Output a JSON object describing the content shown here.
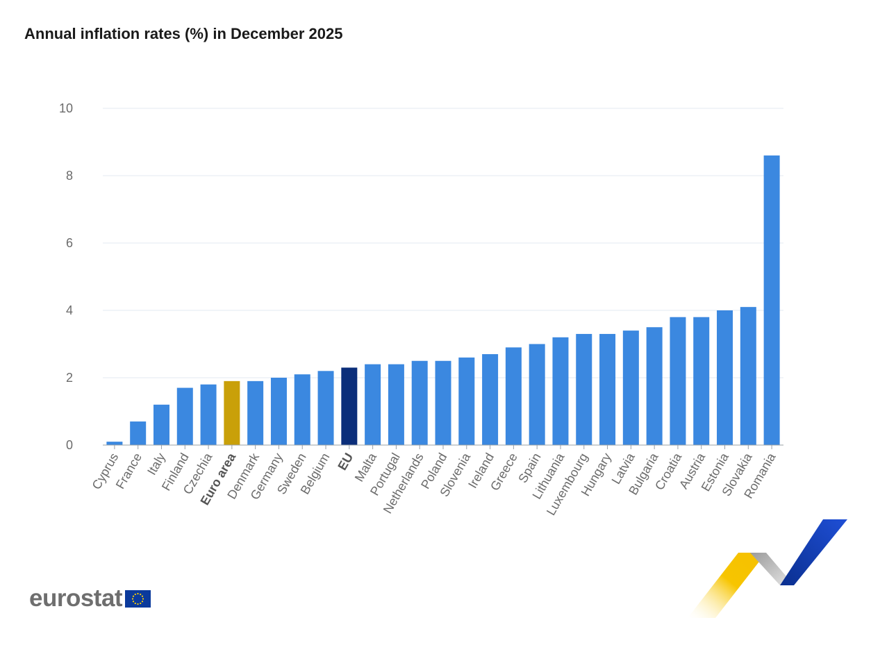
{
  "title": "Annual inflation rates (%) in December 2025",
  "logo": {
    "text": "eurostat",
    "flag_icon": "eu-flag-icon",
    "decoration_icon": "eurostat-ribbon-icon"
  },
  "colors": {
    "country": "#3b88e0",
    "euro_area": "#c9a009",
    "eu": "#0b2e7a",
    "grid": "#e3e9f2",
    "axis": "#9aa0a6"
  },
  "chart_data": {
    "type": "bar",
    "title": "Annual inflation rates (%) in December 2025",
    "xlabel": "",
    "ylabel": "",
    "ylim": [
      0,
      10
    ],
    "yticks": [
      0,
      2,
      4,
      6,
      8,
      10
    ],
    "grid": true,
    "categories": [
      "Cyprus",
      "France",
      "Italy",
      "Finland",
      "Czechia",
      "Euro area",
      "Denmark",
      "Germany",
      "Sweden",
      "Belgium",
      "EU",
      "Malta",
      "Portugal",
      "Netherlands",
      "Poland",
      "Slovenia",
      "Ireland",
      "Greece",
      "Spain",
      "Lithuania",
      "Luxembourg",
      "Hungary",
      "Latvia",
      "Bulgaria",
      "Croatia",
      "Austria",
      "Estonia",
      "Slovakia",
      "Romania"
    ],
    "values": [
      0.1,
      0.7,
      1.2,
      1.7,
      1.8,
      1.9,
      1.9,
      2.0,
      2.1,
      2.2,
      2.3,
      2.4,
      2.4,
      2.5,
      2.5,
      2.6,
      2.7,
      2.9,
      3.0,
      3.2,
      3.3,
      3.3,
      3.4,
      3.5,
      3.8,
      3.8,
      4.0,
      4.1,
      8.6
    ],
    "highlight": {
      "Euro area": "euro_area",
      "EU": "eu"
    }
  }
}
